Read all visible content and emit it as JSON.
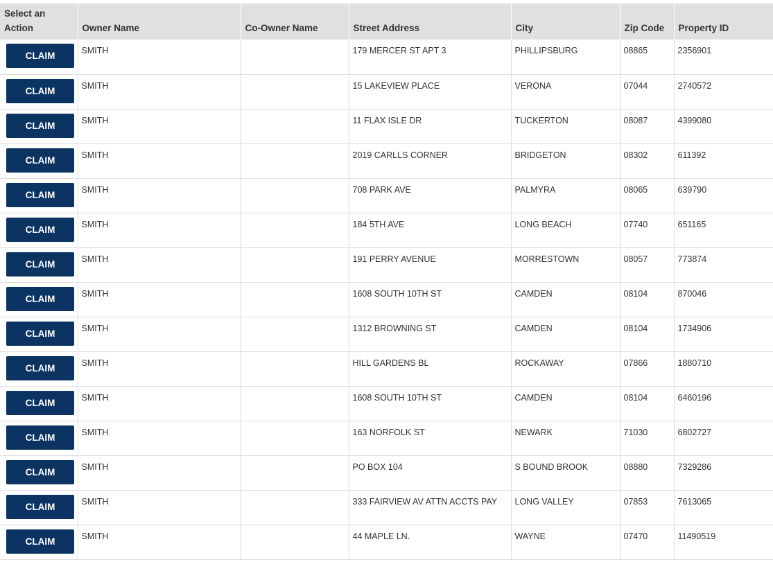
{
  "table": {
    "headers": [
      "Select an Action",
      "Owner Name",
      "Co-Owner Name",
      "Street Address",
      "City",
      "Zip Code",
      "Property ID"
    ],
    "rows": [
      {
        "action": "CLAIM",
        "owner_name": "SMITH",
        "street_address": "179 MERCER ST APT 3",
        "city": "PHILLIPSBURG",
        "zip_code": "08865",
        "property_id": "2356901"
      },
      {
        "action": "CLAIM",
        "owner_name": "SMITH",
        "street_address": "15 LAKEVIEW PLACE",
        "city": "VERONA",
        "zip_code": "07044",
        "property_id": "2740572"
      },
      {
        "action": "CLAIM",
        "owner_name": "SMITH",
        "street_address": "11 FLAX ISLE DR",
        "city": "TUCKERTON",
        "zip_code": "08087",
        "property_id": "4399080"
      },
      {
        "action": "CLAIM",
        "owner_name": "SMITH",
        "street_address": "2019 CARLLS CORNER",
        "city": "BRIDGETON",
        "zip_code": "08302",
        "property_id": "611392"
      },
      {
        "action": "CLAIM",
        "owner_name": "SMITH",
        "street_address": "708 PARK AVE",
        "city": "PALMYRA",
        "zip_code": "08065",
        "property_id": "639790"
      },
      {
        "action": "CLAIM",
        "owner_name": "SMITH",
        "street_address": "184 5TH AVE",
        "city": "LONG BEACH",
        "zip_code": "07740",
        "property_id": "651165"
      },
      {
        "action": "CLAIM",
        "owner_name": "SMITH",
        "street_address": "191 PERRY AVENUE",
        "city": "MORRESTOWN",
        "zip_code": "08057",
        "property_id": "773874"
      },
      {
        "action": "CLAIM",
        "owner_name": "SMITH",
        "street_address": "1608 SOUTH 10TH ST",
        "city": "CAMDEN",
        "zip_code": "08104",
        "property_id": "870046"
      },
      {
        "action": "CLAIM",
        "owner_name": "SMITH",
        "street_address": "1312 BROWNING ST",
        "city": "CAMDEN",
        "zip_code": "08104",
        "property_id": "1734906"
      },
      {
        "action": "CLAIM",
        "owner_name": "SMITH",
        "street_address": "HILL GARDENS BL",
        "city": "ROCKAWAY",
        "zip_code": "07866",
        "property_id": "1880710"
      },
      {
        "action": "CLAIM",
        "owner_name": "SMITH",
        "street_address": "1608 SOUTH 10TH ST",
        "city": "CAMDEN",
        "zip_code": "08104",
        "property_id": "6460196"
      },
      {
        "action": "CLAIM",
        "owner_name": "SMITH",
        "street_address": "163 NORFOLK ST",
        "city": "NEWARK",
        "zip_code": "71030",
        "property_id": "6802727"
      },
      {
        "action": "CLAIM",
        "owner_name": "SMITH",
        "street_address": "PO BOX 104",
        "city": "S BOUND BROOK",
        "zip_code": "08880",
        "property_id": "7329286"
      },
      {
        "action": "CLAIM",
        "owner_name": "SMITH",
        "street_address": "333 FAIRVIEW AV ATTN ACCTS PAY",
        "city": "LONG VALLEY",
        "zip_code": "07853",
        "property_id": "7613065"
      },
      {
        "action": "CLAIM",
        "owner_name": "SMITH",
        "street_address": "44 MAPLE LN.",
        "city": "WAYNE",
        "zip_code": "07470",
        "property_id": "11490519"
      }
    ]
  }
}
